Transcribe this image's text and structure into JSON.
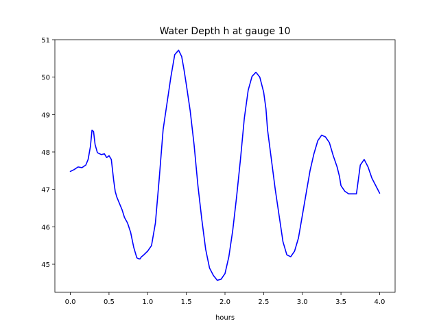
{
  "chart_data": {
    "type": "line",
    "title": "Water Depth h at gauge 10",
    "xlabel": "hours",
    "ylabel": "",
    "xlim": [
      -0.2,
      4.2
    ],
    "ylim": [
      44.25,
      51.0
    ],
    "xticks": [
      0.0,
      0.5,
      1.0,
      1.5,
      2.0,
      2.5,
      3.0,
      3.5,
      4.0
    ],
    "xtick_labels": [
      "0.0",
      "0.5",
      "1.0",
      "1.5",
      "2.0",
      "2.5",
      "3.0",
      "3.5",
      "4.0"
    ],
    "yticks": [
      45,
      46,
      47,
      48,
      49,
      50,
      51
    ],
    "ytick_labels": [
      "45",
      "46",
      "47",
      "48",
      "49",
      "50",
      "51"
    ],
    "grid": false,
    "series": [
      {
        "color": "#0000ff",
        "x": [
          0.0,
          0.05,
          0.1,
          0.15,
          0.2,
          0.23,
          0.26,
          0.28,
          0.3,
          0.32,
          0.35,
          0.4,
          0.44,
          0.47,
          0.5,
          0.53,
          0.56,
          0.58,
          0.6,
          0.63,
          0.67,
          0.7,
          0.74,
          0.78,
          0.82,
          0.86,
          0.88,
          0.9,
          0.92,
          0.95,
          1.0,
          1.05,
          1.1,
          1.15,
          1.2,
          1.25,
          1.3,
          1.35,
          1.4,
          1.44,
          1.47,
          1.5,
          1.55,
          1.6,
          1.65,
          1.7,
          1.75,
          1.8,
          1.85,
          1.9,
          1.95,
          2.0,
          2.05,
          2.1,
          2.15,
          2.2,
          2.25,
          2.3,
          2.35,
          2.4,
          2.45,
          2.5,
          2.53,
          2.55,
          2.6,
          2.65,
          2.7,
          2.75,
          2.8,
          2.85,
          2.9,
          2.95,
          3.0,
          3.05,
          3.1,
          3.15,
          3.2,
          3.25,
          3.3,
          3.35,
          3.4,
          3.45,
          3.48,
          3.5,
          3.55,
          3.6,
          3.65,
          3.7,
          3.75,
          3.8,
          3.85,
          3.9,
          3.95,
          4.0
        ],
        "y": [
          47.48,
          47.53,
          47.6,
          47.58,
          47.65,
          47.8,
          48.15,
          48.58,
          48.55,
          48.2,
          47.98,
          47.93,
          47.95,
          47.85,
          47.9,
          47.8,
          47.25,
          46.95,
          46.8,
          46.65,
          46.45,
          46.25,
          46.1,
          45.85,
          45.45,
          45.17,
          45.15,
          45.14,
          45.2,
          45.25,
          45.35,
          45.5,
          46.1,
          47.3,
          48.6,
          49.3,
          50.0,
          50.6,
          50.72,
          50.55,
          50.2,
          49.8,
          49.1,
          48.2,
          47.1,
          46.2,
          45.4,
          44.9,
          44.7,
          44.57,
          44.6,
          44.75,
          45.2,
          45.9,
          46.8,
          47.8,
          48.9,
          49.65,
          50.02,
          50.13,
          50.0,
          49.6,
          49.15,
          48.6,
          47.8,
          47.0,
          46.3,
          45.6,
          45.25,
          45.2,
          45.35,
          45.7,
          46.3,
          46.9,
          47.5,
          47.95,
          48.3,
          48.45,
          48.4,
          48.25,
          47.9,
          47.6,
          47.35,
          47.1,
          46.95,
          46.88,
          46.88,
          46.88,
          47.65,
          47.8,
          47.6,
          47.3,
          47.1,
          46.9
        ],
        "values_note_fix": null
      }
    ]
  }
}
